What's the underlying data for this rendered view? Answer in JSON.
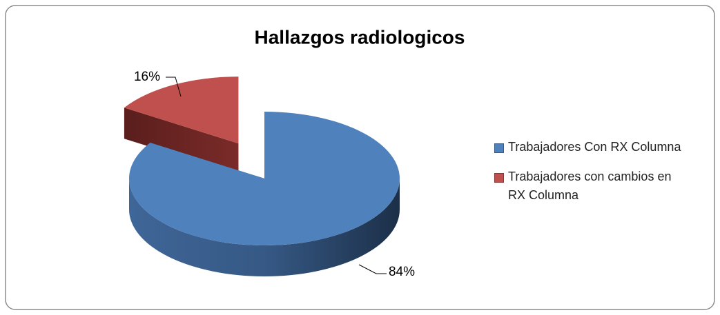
{
  "chart_data": {
    "type": "pie",
    "title": "Hallazgos radiologicos",
    "categories": [
      "Trabajadores Con RX Columna",
      "Trabajadores con cambios en RX Columna"
    ],
    "values": [
      84,
      16
    ],
    "value_labels": [
      "84%",
      "16%"
    ],
    "colors": [
      "#4f81bd",
      "#c0504d"
    ],
    "legend": "right"
  }
}
